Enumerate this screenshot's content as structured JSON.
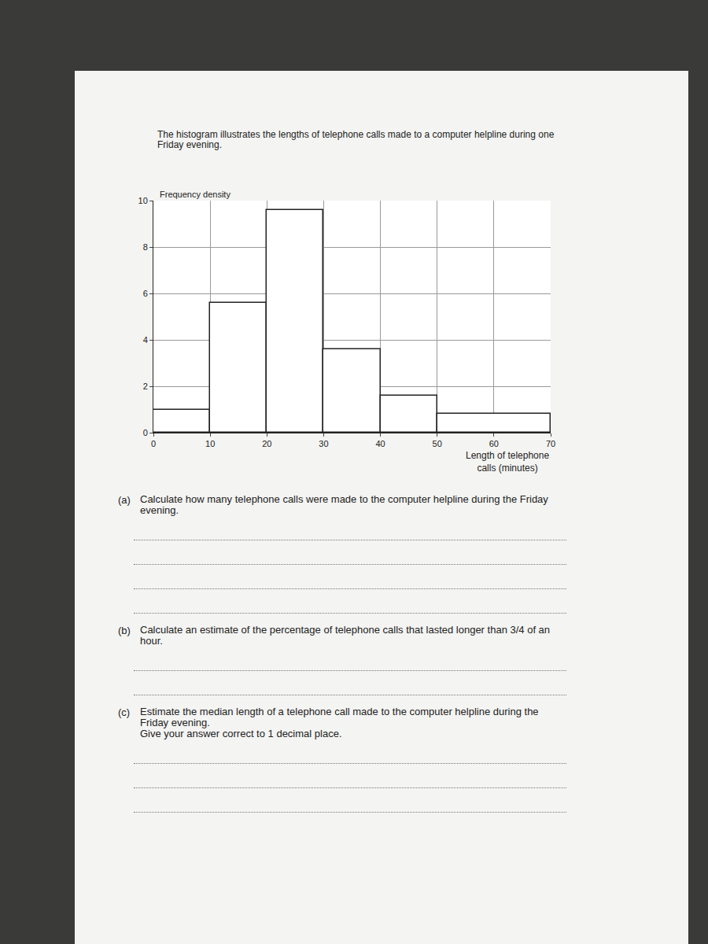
{
  "heading": [
    "The histogram illustrates the lengths of telephone calls made to a computer helpline during one",
    "Friday evening."
  ],
  "chart_data": {
    "type": "histogram",
    "y_label": "Frequency density",
    "x_label": [
      "Length of telephone",
      "calls (minutes)"
    ],
    "bins": [
      0,
      10,
      20,
      30,
      40,
      50,
      70
    ],
    "values": [
      1,
      5.6,
      9.6,
      3.6,
      1.6,
      0.8
    ],
    "color": "#ffffff",
    "xlim": [
      0,
      70
    ],
    "xticks": [
      0,
      10,
      20,
      30,
      40,
      50,
      60,
      70
    ],
    "ylim": [
      0,
      10
    ],
    "yticks": [
      0,
      2,
      4,
      6,
      8,
      10
    ],
    "grid": true
  },
  "questions": [
    {
      "label": "(a)",
      "text": "Calculate how many telephone calls were made to the computer helpline during the Friday evening."
    },
    {
      "label": "(b)",
      "text": "Calculate an estimate of the percentage of telephone calls that lasted longer than 3/4 of an hour."
    },
    {
      "label": "(c)",
      "text": "Estimate the median length of a telephone call made to the computer helpline during the Friday evening.",
      "note": "Give your answer correct to 1 decimal place."
    }
  ]
}
